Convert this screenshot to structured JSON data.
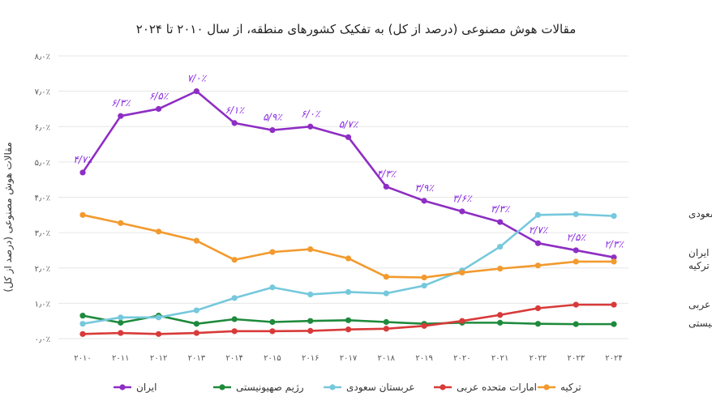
{
  "chart_data": {
    "type": "line",
    "title": "مقالات هوش مصنوعی (درصد از کل) به تفکیک کشورهای منطقه، از سال ۲۰۱۰ تا ۲۰۲۴",
    "ylabel": "مقالات هوش مصنوعی (درصد از کل)",
    "xlabel": "",
    "ylim": [
      0,
      8
    ],
    "grid": true,
    "legend_position": "bottom",
    "y_ticks": [
      "۰٫۰٪",
      "۱٫۰٪",
      "۲٫۰٪",
      "۳٫۰٪",
      "۴٫۰٪",
      "۵٫۰٪",
      "۶٫۰٪",
      "۷٫۰٪",
      "۸٫۰٪"
    ],
    "x": [
      "۲۰۱۰",
      "۲۰۱۱",
      "۲۰۱۲",
      "۲۰۱۳",
      "۲۰۱۴",
      "۲۰۱۵",
      "۲۰۱۶",
      "۲۰۱۷",
      "۲۰۱۸",
      "۲۰۱۹",
      "۲۰۲۰",
      "۲۰۲۱",
      "۲۰۲۲",
      "۲۰۲۳",
      "۲۰۲۴"
    ],
    "series": [
      {
        "name": "ایران",
        "color": "#8e2ec4",
        "values": [
          4.7,
          6.3,
          6.5,
          7.0,
          6.1,
          5.9,
          6.0,
          5.7,
          4.3,
          3.9,
          3.6,
          3.3,
          2.7,
          2.5,
          2.3
        ],
        "data_labels": [
          "۴/۷٪",
          "۶/۳٪",
          "۶/۵٪",
          "۷/۰٪",
          "۶/۱٪",
          "۵/۹٪",
          "۶/۰٪",
          "۵/۷٪",
          "۴/۳٪",
          "۳/۹٪",
          "۳/۶٪",
          "۳/۳٪",
          "۲/۷٪",
          "۲/۵٪",
          "۲/۳٪"
        ]
      },
      {
        "name": "رژیم صهیونیستی",
        "color": "#1e8a3c",
        "values": [
          0.65,
          0.45,
          0.65,
          0.42,
          0.55,
          0.47,
          0.5,
          0.52,
          0.47,
          0.42,
          0.45,
          0.45,
          0.42,
          0.41,
          0.41
        ]
      },
      {
        "name": "عربستان سعودی",
        "color": "#76c8dc",
        "values": [
          0.42,
          0.6,
          0.6,
          0.8,
          1.15,
          1.45,
          1.25,
          1.32,
          1.28,
          1.5,
          1.93,
          2.6,
          3.5,
          3.52,
          3.47
        ]
      },
      {
        "name": "امارات متحده عربی",
        "color": "#d83a3a",
        "values": [
          0.13,
          0.16,
          0.13,
          0.16,
          0.21,
          0.21,
          0.22,
          0.26,
          0.28,
          0.36,
          0.5,
          0.67,
          0.86,
          0.96,
          0.96
        ]
      },
      {
        "name": "ترکیه",
        "color": "#f29a2e",
        "values": [
          3.5,
          3.27,
          3.03,
          2.77,
          2.23,
          2.45,
          2.53,
          2.27,
          1.75,
          1.73,
          1.87,
          1.98,
          2.07,
          2.18,
          2.18
        ]
      }
    ],
    "right_labels": [
      "عربستان سعودی",
      "ایران",
      "ترکیه",
      "امارات متحده عربی",
      "رژیم صهیونیستی"
    ]
  }
}
